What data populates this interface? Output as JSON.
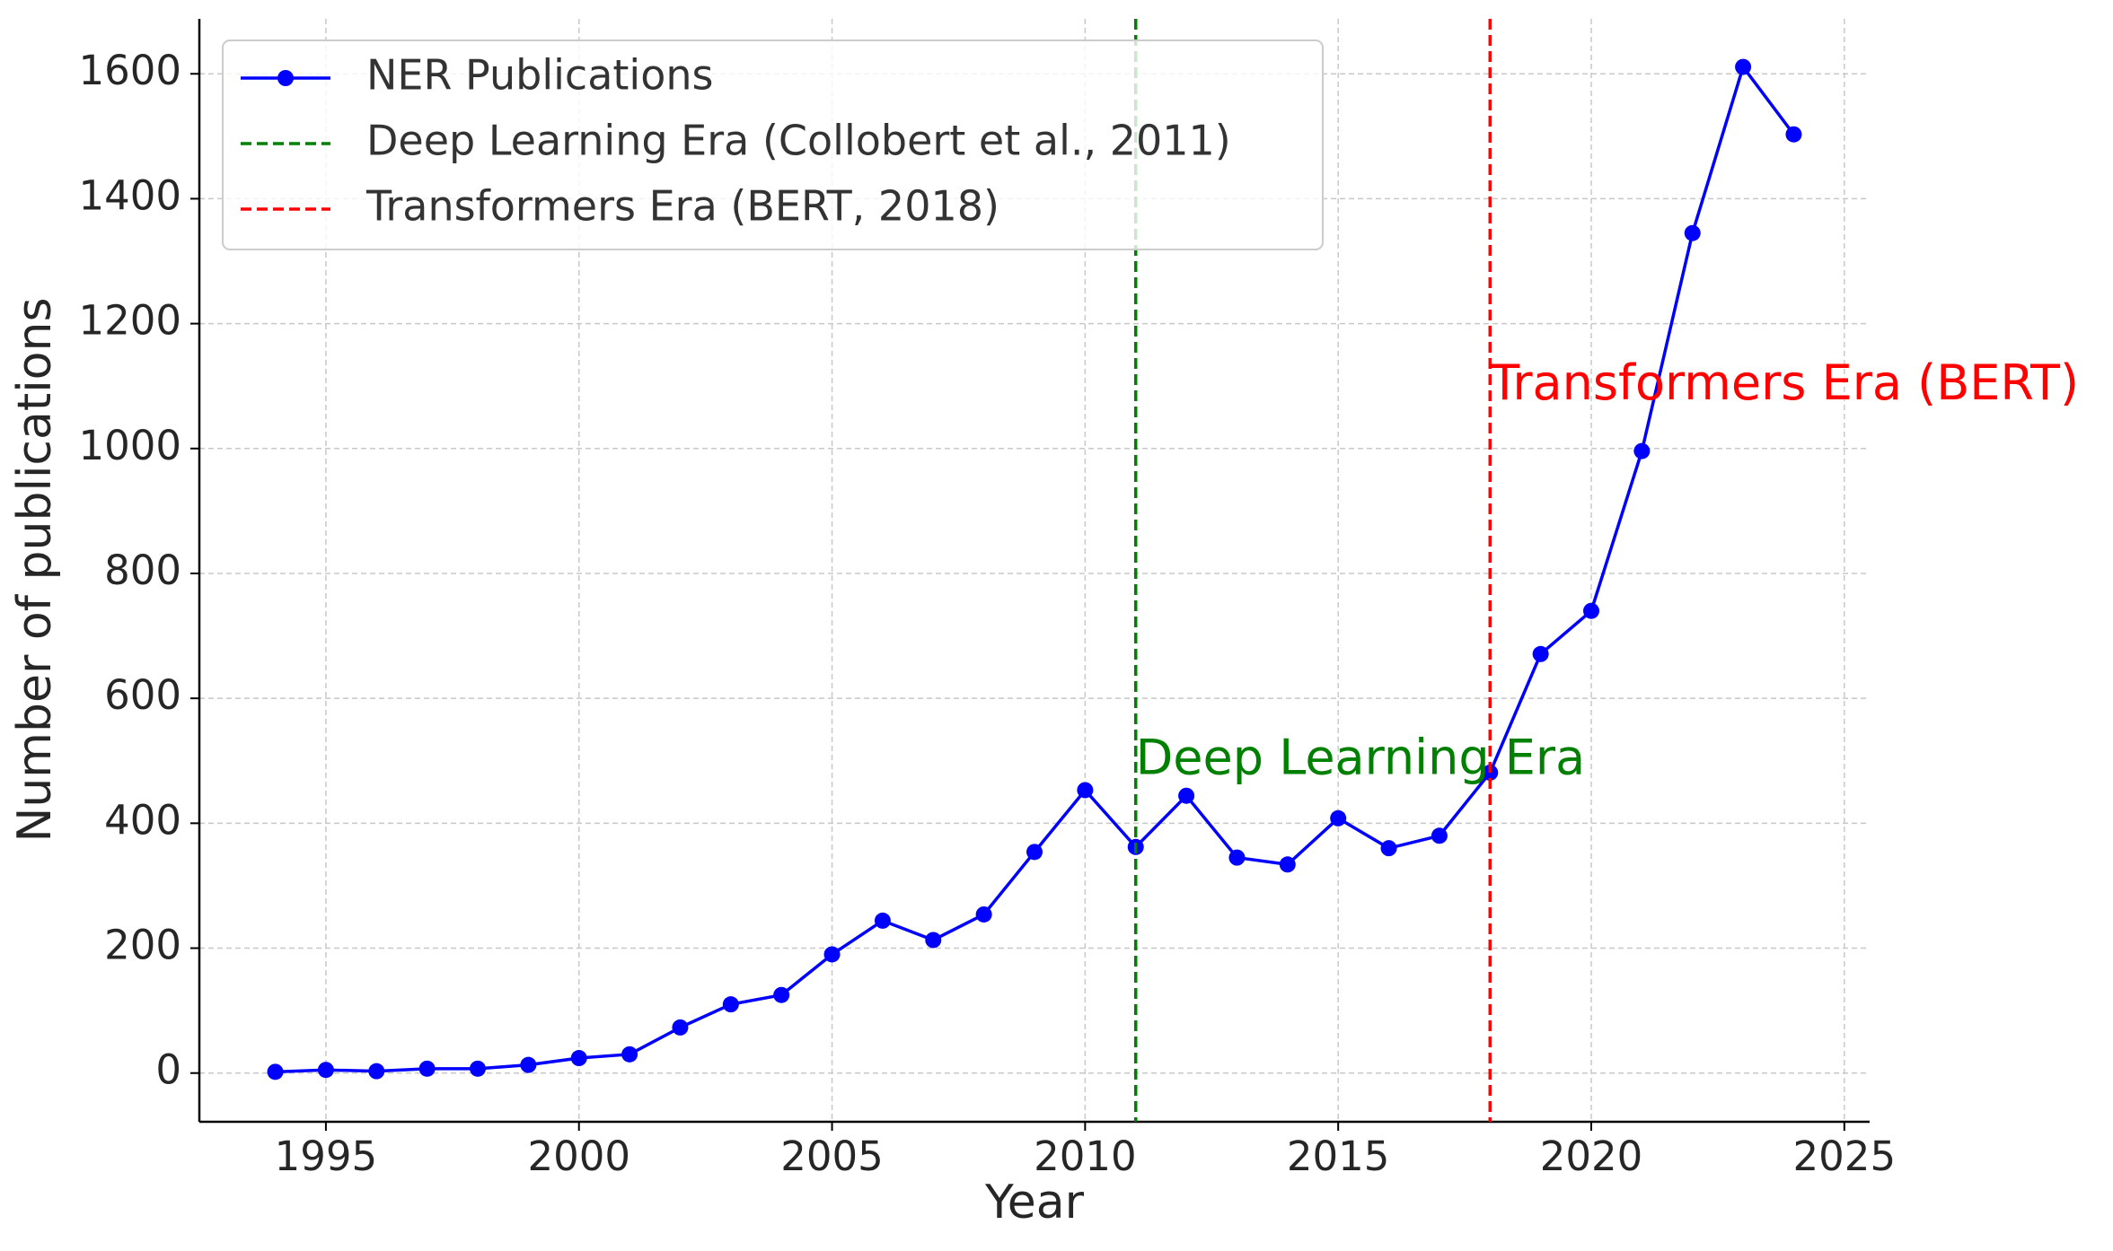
{
  "chart_data": {
    "type": "line",
    "xlabel": "Year",
    "ylabel": "Number of publications",
    "x": [
      1994,
      1995,
      1996,
      1997,
      1998,
      1999,
      2000,
      2001,
      2002,
      2003,
      2004,
      2005,
      2006,
      2007,
      2008,
      2009,
      2010,
      2011,
      2012,
      2013,
      2014,
      2015,
      2016,
      2017,
      2018,
      2019,
      2020,
      2021,
      2022,
      2023,
      2024
    ],
    "series": [
      {
        "name": "NER Publications",
        "color": "#0000ff",
        "marker": "circle",
        "values": [
          2,
          5,
          3,
          7,
          7,
          13,
          24,
          30,
          73,
          110,
          125,
          190,
          244,
          213,
          254,
          354,
          453,
          362,
          444,
          345,
          334,
          408,
          360,
          380,
          481,
          671,
          740,
          996,
          1345,
          1611,
          1503
        ]
      }
    ],
    "vlines": [
      {
        "name": "Deep Learning Era (Collobert et al., 2011)",
        "x": 2011,
        "color": "#008000",
        "annotation": "Deep Learning Era",
        "annotation_y": 500
      },
      {
        "name": "Transformers Era (BERT, 2018)",
        "x": 2018,
        "color": "#ff0000",
        "annotation": "Transformers Era (BERT)",
        "annotation_y": 1100
      }
    ],
    "xlim": [
      1992.5,
      2025.5
    ],
    "ylim": [
      -78,
      1688
    ],
    "xticks": [
      1995,
      2000,
      2005,
      2010,
      2015,
      2020,
      2025
    ],
    "yticks": [
      0,
      200,
      400,
      600,
      800,
      1000,
      1200,
      1400,
      1600
    ],
    "grid": true,
    "legend": "upper-left"
  }
}
